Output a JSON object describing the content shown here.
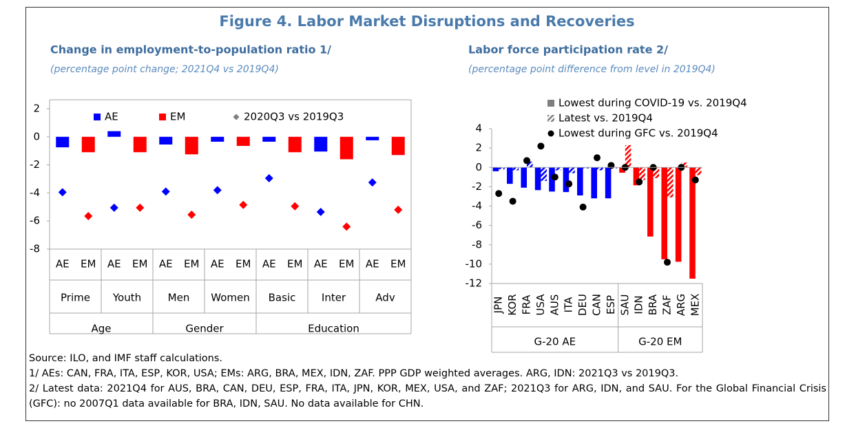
{
  "title": "Figure 4. Labor Market Disruptions and Recoveries",
  "chart_data": [
    {
      "type": "bar",
      "title": "Change in employment-to-population ratio 1/",
      "subtitle": "(percentage point change; 2021Q4 vs 2019Q4)",
      "groups": [
        {
          "name": "Age",
          "subgroups": [
            {
              "name": "Prime",
              "categories": [
                "AE",
                "EM"
              ]
            },
            {
              "name": "Youth",
              "categories": [
                "AE",
                "EM"
              ]
            }
          ]
        },
        {
          "name": "Gender",
          "subgroups": [
            {
              "name": "Men",
              "categories": [
                "AE",
                "EM"
              ]
            },
            {
              "name": "Women",
              "categories": [
                "AE",
                "EM"
              ]
            }
          ]
        },
        {
          "name": "Education",
          "subgroups": [
            {
              "name": "Basic",
              "categories": [
                "AE",
                "EM"
              ]
            },
            {
              "name": "Inter",
              "categories": [
                "AE",
                "EM"
              ]
            },
            {
              "name": "Adv",
              "categories": [
                "AE",
                "EM"
              ]
            }
          ]
        }
      ],
      "series": [
        {
          "name": "AE",
          "color": "#0000ff",
          "values": [
            -0.75,
            0.4,
            -0.55,
            -0.35,
            -0.35,
            -1.05,
            -0.25
          ]
        },
        {
          "name": "EM",
          "color": "#ff0000",
          "values": [
            -1.1,
            -1.1,
            -1.25,
            -0.65,
            -1.1,
            -1.6,
            -1.3
          ]
        },
        {
          "name": "2020Q3 vs 2019Q3",
          "type": "scatter",
          "marker": "diamond",
          "color": "#7f7f7f",
          "values": [
            -3.95,
            -5.65,
            -5.05,
            -5.05,
            -3.9,
            -5.55,
            -3.8,
            -4.85,
            -2.95,
            -4.95,
            -5.35,
            -6.4,
            -3.25,
            -5.2
          ]
        }
      ],
      "ylim": [
        -8,
        2
      ],
      "yticks": [
        -8,
        -6,
        -4,
        -2,
        0,
        2
      ]
    },
    {
      "type": "bar",
      "title": "Labor force participation rate 2/",
      "subtitle": "(percentage point difference from level in 2019Q4)",
      "groups": [
        {
          "name": "G-20 AE",
          "color": "#0000ff",
          "categories": [
            "JPN",
            "KOR",
            "FRA",
            "USA",
            "AUS",
            "ITA",
            "DEU",
            "CAN",
            "ESP"
          ]
        },
        {
          "name": "G-20 EM",
          "color": "#ff0000",
          "categories": [
            "SAU",
            "IDN",
            "BRA",
            "ZAF",
            "ARG",
            "MEX"
          ]
        }
      ],
      "series": [
        {
          "name": "Lowest during COVID-19 vs. 2019Q4",
          "fill": "solid",
          "color": "#7f7f7f",
          "values": [
            -0.4,
            -1.7,
            -2.1,
            -2.35,
            -2.5,
            -2.55,
            -2.9,
            -3.2,
            -3.2,
            -0.55,
            -1.85,
            -7.15,
            -9.5,
            -9.75,
            -11.5
          ]
        },
        {
          "name": "Latest vs. 2019Q4",
          "fill": "hatch",
          "color": "#7f7f7f",
          "values": [
            -0.2,
            -0.3,
            0.6,
            -1.4,
            -0.3,
            -0.6,
            -0.1,
            -0.3,
            -0.1,
            2.3,
            -1.3,
            -1.1,
            -3.1,
            0.5,
            -0.8
          ]
        },
        {
          "name": "Lowest during GFC vs. 2019Q4",
          "type": "scatter",
          "marker": "circle",
          "color": "#000000",
          "values": [
            -2.7,
            -3.5,
            0.7,
            2.2,
            -1.0,
            -1.7,
            -4.1,
            1.0,
            0.2,
            0.0,
            -1.5,
            0.0,
            -9.8,
            0.0,
            -1.3
          ]
        }
      ],
      "ylim": [
        -12,
        4
      ],
      "yticks": [
        -12,
        -10,
        -8,
        -6,
        -4,
        -2,
        0,
        2,
        4
      ]
    }
  ],
  "notes": [
    "Source: ILO, and IMF staff calculations.",
    "1/ AEs: CAN, FRA, ITA, ESP, KOR, USA; EMs: ARG, BRA, MEX, IDN, ZAF. PPP GDP weighted averages. ARG, IDN: 2021Q3 vs 2019Q3.",
    "2/ Latest data: 2021Q4 for AUS, BRA, CAN, DEU, ESP, FRA, ITA, JPN, KOR, MEX, USA, and ZAF; 2021Q3 for ARG, IDN, and SAU. For the Global Financial Crisis (GFC): no 2007Q1 data available for BRA, IDN, SAU. No data available for CHN."
  ]
}
